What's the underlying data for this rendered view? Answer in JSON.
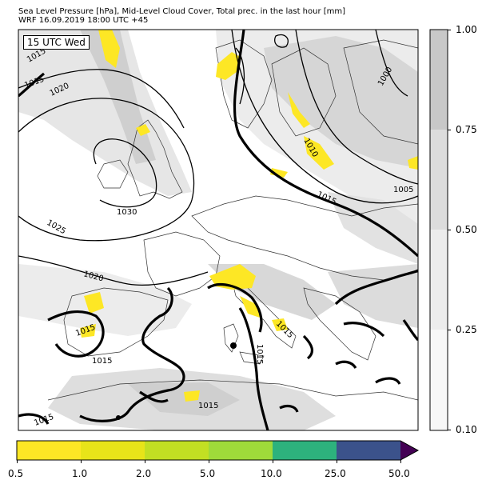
{
  "title": {
    "line1": "Sea Level Pressure [hPa], Mid-Level Cloud Cover, Total prec. in the last hour [mm]",
    "line2": "WRF 16.09.2019 18:00 UTC +45"
  },
  "stamp": "15 UTC Wed",
  "isobar_labels": [
    "1015",
    "1020",
    "1025",
    "1030",
    "1020",
    "1015",
    "1015",
    "1015",
    "1015",
    "1015",
    "1010",
    "1015",
    "1005",
    "1000",
    "1015"
  ],
  "cloud_colorbar": {
    "ticks": [
      "1.00",
      "0.75",
      "0.50",
      "0.25",
      "0.10"
    ],
    "colors": [
      "#c8c8c8",
      "#dcdcdc",
      "#ececec",
      "#f7f7f7"
    ]
  },
  "precip_colorbar": {
    "ticks": [
      "0.5",
      "1.0",
      "2.0",
      "5.0",
      "10.0",
      "25.0",
      "50.0"
    ],
    "colors": [
      "#fde725",
      "#e8e419",
      "#c2df23",
      "#9fda3a",
      "#2db27d",
      "#3b528b",
      "#440154"
    ]
  }
}
